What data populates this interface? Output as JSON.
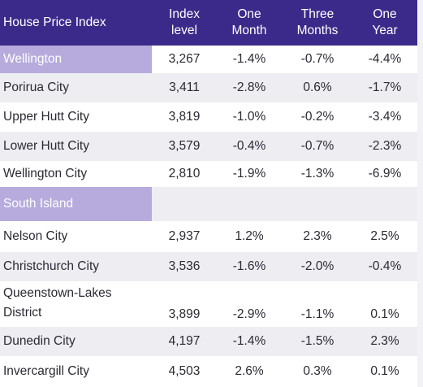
{
  "header": {
    "title": "House Price Index",
    "columns": [
      [
        "Index",
        "level"
      ],
      [
        "One",
        "Month"
      ],
      [
        "Three",
        "Months"
      ],
      [
        "One",
        "Year"
      ]
    ]
  },
  "sections": [
    {
      "region": "Wellington",
      "region_values": [
        "3,267",
        "-1.4%",
        "-0.7%",
        "-4.4%"
      ],
      "rows": [
        {
          "name": "Porirua City",
          "values": [
            "3,411",
            "-2.8%",
            "0.6%",
            "-1.7%"
          ]
        },
        {
          "name": "Upper Hutt City",
          "values": [
            "3,819",
            "-1.0%",
            "-0.2%",
            "-3.4%"
          ]
        },
        {
          "name": "Lower Hutt City",
          "values": [
            "3,579",
            "-0.4%",
            "-0.7%",
            "-2.3%"
          ]
        },
        {
          "name": "Wellington City",
          "values": [
            "2,810",
            "-1.9%",
            "-1.3%",
            "-6.9%"
          ]
        }
      ]
    },
    {
      "region": "South Island",
      "rows": [
        {
          "name": "Nelson City",
          "values": [
            "2,937",
            "1.2%",
            "2.3%",
            "2.5%"
          ]
        },
        {
          "name": "Christchurch City",
          "values": [
            "3,536",
            "-1.6%",
            "-2.0%",
            "-0.4%"
          ]
        },
        {
          "name_line1": "Queenstown-Lakes",
          "name_line2": "District",
          "values": [
            "3,899",
            "-2.9%",
            "-1.1%",
            "0.1%"
          ]
        },
        {
          "name": "Dunedin City",
          "values": [
            "4,197",
            "-1.4%",
            "-1.5%",
            "2.3%"
          ]
        },
        {
          "name": "Invercargill City",
          "values": [
            "4,503",
            "2.6%",
            "0.3%",
            "0.1%"
          ]
        }
      ]
    }
  ],
  "colors": {
    "header_bg": "#3c2a8a",
    "region_bg": "#b6abdc",
    "alt_row_bg": "#eeedf2"
  }
}
